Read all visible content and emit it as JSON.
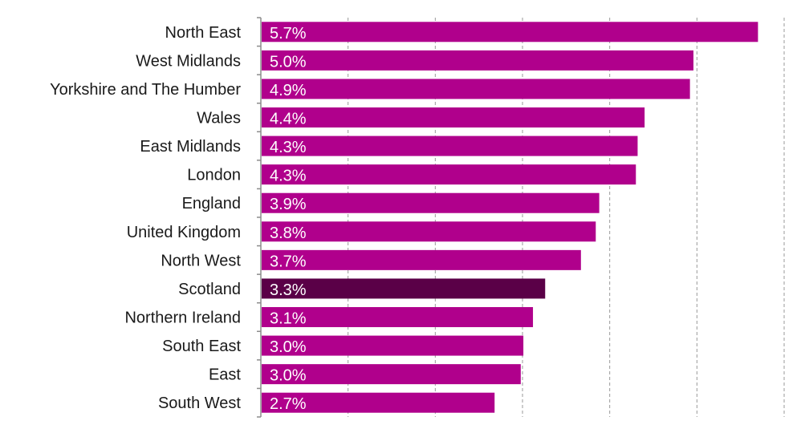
{
  "chart_data": {
    "type": "bar",
    "orientation": "horizontal",
    "categories": [
      "North East",
      "West Midlands",
      "Yorkshire and The Humber",
      "Wales",
      "East Midlands",
      "London",
      "England",
      "United Kingdom",
      "North West",
      "Scotland",
      "Northern Ireland",
      "South East",
      "East",
      "South West"
    ],
    "values": [
      5.7,
      4.96,
      4.92,
      4.4,
      4.32,
      4.3,
      3.88,
      3.84,
      3.67,
      3.26,
      3.12,
      3.01,
      2.98,
      2.68
    ],
    "labels": [
      "5.7%",
      "5.0%",
      "4.9%",
      "4.4%",
      "4.3%",
      "4.3%",
      "3.9%",
      "3.8%",
      "3.7%",
      "3.3%",
      "3.1%",
      "3.0%",
      "3.0%",
      "2.7%"
    ],
    "xlim": [
      0,
      6
    ],
    "grid": true,
    "legend": "none",
    "bar_color": "#b0008c",
    "highlight": "Scotland",
    "highlight_color": "#5a0047",
    "title": "",
    "xlabel": "",
    "ylabel": ""
  }
}
